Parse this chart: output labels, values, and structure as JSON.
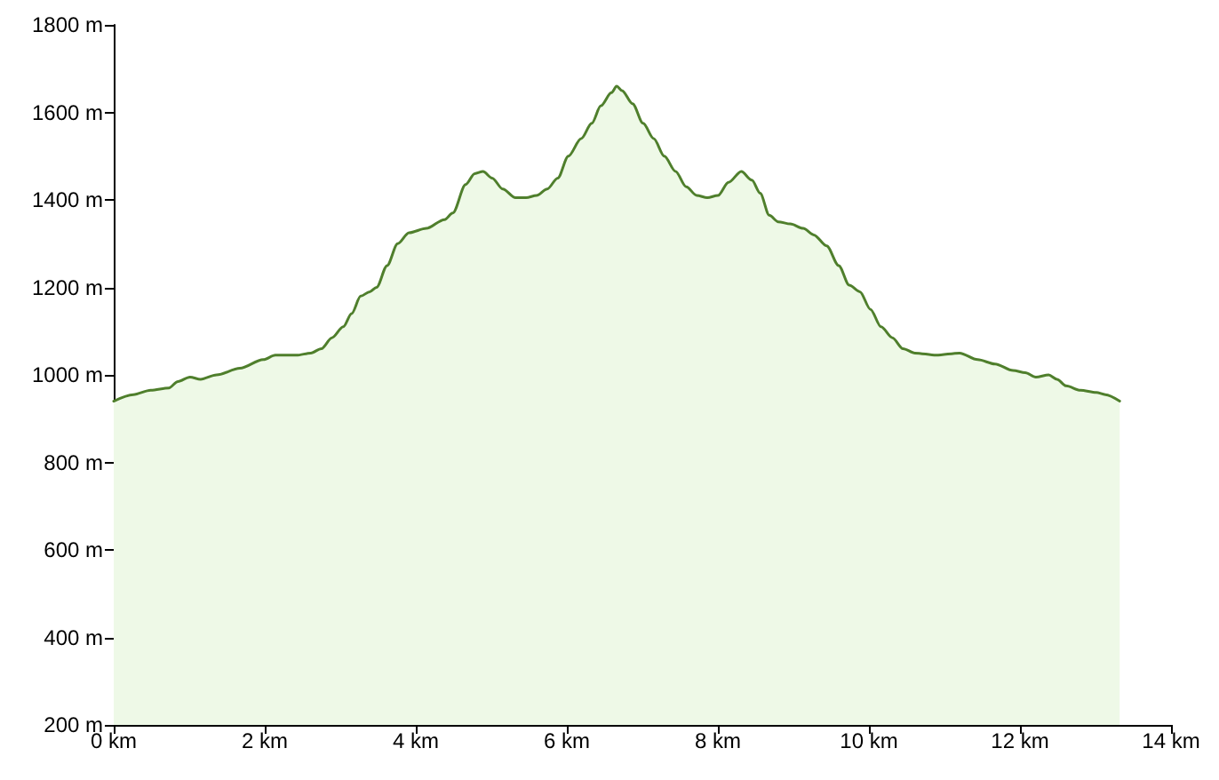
{
  "chart_data": {
    "type": "area",
    "x": [
      0,
      0.26,
      0.49,
      0.73,
      0.85,
      1.01,
      1.15,
      1.36,
      1.67,
      1.98,
      2.14,
      2.42,
      2.61,
      2.75,
      2.89,
      3.04,
      3.15,
      3.27,
      3.39,
      3.48,
      3.62,
      3.76,
      3.91,
      4.14,
      4.38,
      4.49,
      4.66,
      4.78,
      4.89,
      5.01,
      5.15,
      5.32,
      5.46,
      5.6,
      5.74,
      5.88,
      6.02,
      6.19,
      6.33,
      6.45,
      6.59,
      6.66,
      6.73,
      6.87,
      7.01,
      7.15,
      7.29,
      7.44,
      7.58,
      7.72,
      7.86,
      8,
      8.14,
      8.31,
      8.45,
      8.56,
      8.68,
      8.8,
      8.96,
      9.13,
      9.27,
      9.44,
      9.6,
      9.74,
      9.88,
      10.02,
      10.16,
      10.31,
      10.45,
      10.61,
      10.89,
      11.2,
      11.44,
      11.67,
      11.91,
      12.07,
      12.21,
      12.38,
      12.49,
      12.61,
      12.8,
      13.01,
      13.13,
      13.32
    ],
    "values": [
      940,
      955,
      965,
      970,
      985,
      995,
      990,
      1000,
      1015,
      1035,
      1045,
      1045,
      1050,
      1060,
      1085,
      1110,
      1140,
      1180,
      1190,
      1200,
      1250,
      1300,
      1325,
      1335,
      1355,
      1370,
      1435,
      1460,
      1465,
      1450,
      1425,
      1405,
      1405,
      1410,
      1425,
      1450,
      1500,
      1540,
      1575,
      1615,
      1645,
      1660,
      1650,
      1620,
      1575,
      1540,
      1500,
      1465,
      1430,
      1410,
      1405,
      1410,
      1440,
      1465,
      1445,
      1415,
      1365,
      1350,
      1345,
      1335,
      1320,
      1295,
      1250,
      1205,
      1190,
      1150,
      1110,
      1085,
      1060,
      1050,
      1045,
      1050,
      1035,
      1025,
      1010,
      1005,
      995,
      1000,
      990,
      975,
      965,
      960,
      955,
      940
    ],
    "color": "#4f7f2c",
    "xlim": [
      0,
      14
    ],
    "xticks": [
      {
        "value": 0,
        "label": "0 km"
      },
      {
        "value": 2,
        "label": "2 km"
      },
      {
        "value": 4,
        "label": "4 km"
      },
      {
        "value": 6,
        "label": "6 km"
      },
      {
        "value": 8,
        "label": "8 km"
      },
      {
        "value": 10,
        "label": "10 km"
      },
      {
        "value": 12,
        "label": "12 km"
      },
      {
        "value": 14,
        "label": "14 km"
      }
    ],
    "ylim": [
      200,
      1800
    ],
    "yticks": [
      {
        "value": 200,
        "label": "200 m"
      },
      {
        "value": 400,
        "label": "400 m"
      },
      {
        "value": 600,
        "label": "600 m"
      },
      {
        "value": 800,
        "label": "800 m"
      },
      {
        "value": 1000,
        "label": "1000 m"
      },
      {
        "value": 1200,
        "label": "1200 m"
      },
      {
        "value": 1400,
        "label": "1400 m"
      },
      {
        "value": 1600,
        "label": "1600 m"
      },
      {
        "value": 1800,
        "label": "1800 m"
      }
    ],
    "grid": false,
    "marker": "none",
    "line_style": "solid"
  }
}
